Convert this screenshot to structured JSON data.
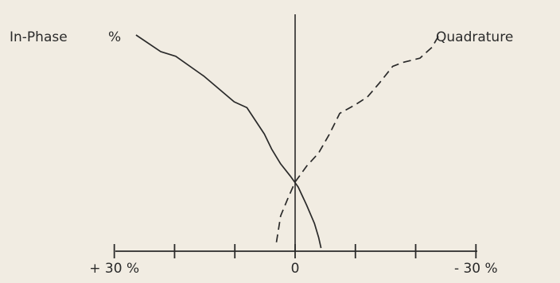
{
  "chart_data": {
    "type": "line",
    "x_axis": {
      "ticks": [
        30,
        20,
        10,
        0,
        -10,
        -20,
        -30
      ],
      "tick_labels": [
        {
          "value": 30,
          "text": "+ 30 %"
        },
        {
          "value": 0,
          "text": "0"
        },
        {
          "value": -30,
          "text": "- 30 %"
        }
      ],
      "xlim": [
        30,
        -30
      ],
      "reversed": true
    },
    "percent_symbol": "%",
    "grid": false,
    "series": [
      {
        "name": "In-Phase",
        "style": "solid",
        "color": "#2a2a2a",
        "points": [
          {
            "x": 26.4,
            "y": 100
          },
          {
            "x": 22.3,
            "y": 92.2
          },
          {
            "x": 19.8,
            "y": 90.0
          },
          {
            "x": 15.1,
            "y": 80.6
          },
          {
            "x": 10.1,
            "y": 68.6
          },
          {
            "x": 8.0,
            "y": 65.9
          },
          {
            "x": 5.1,
            "y": 53.5
          },
          {
            "x": 3.9,
            "y": 46.5
          },
          {
            "x": 2.4,
            "y": 39.5
          },
          {
            "x": 0.8,
            "y": 33.8
          },
          {
            "x": -0.5,
            "y": 28.7
          },
          {
            "x": -1.9,
            "y": 20.2
          },
          {
            "x": -3.2,
            "y": 11.6
          },
          {
            "x": -3.9,
            "y": 5.0
          },
          {
            "x": -4.3,
            "y": 0
          }
        ]
      },
      {
        "name": "Quadrature",
        "style": "dashed",
        "color": "#2a2a2a",
        "points": [
          {
            "x": 3.1,
            "y": 2.7
          },
          {
            "x": 2.4,
            "y": 15.1
          },
          {
            "x": 1.2,
            "y": 23.3
          },
          {
            "x": 0.0,
            "y": 31.0
          },
          {
            "x": -1.9,
            "y": 38.4
          },
          {
            "x": -3.9,
            "y": 44.6
          },
          {
            "x": -5.7,
            "y": 53.5
          },
          {
            "x": -7.4,
            "y": 63.2
          },
          {
            "x": -9.9,
            "y": 67.1
          },
          {
            "x": -12.0,
            "y": 70.9
          },
          {
            "x": -14.0,
            "y": 77.5
          },
          {
            "x": -16.2,
            "y": 85.3
          },
          {
            "x": -18.0,
            "y": 87.2
          },
          {
            "x": -20.7,
            "y": 89.1
          },
          {
            "x": -22.7,
            "y": 94.2
          },
          {
            "x": -23.9,
            "y": 100
          }
        ]
      }
    ]
  }
}
